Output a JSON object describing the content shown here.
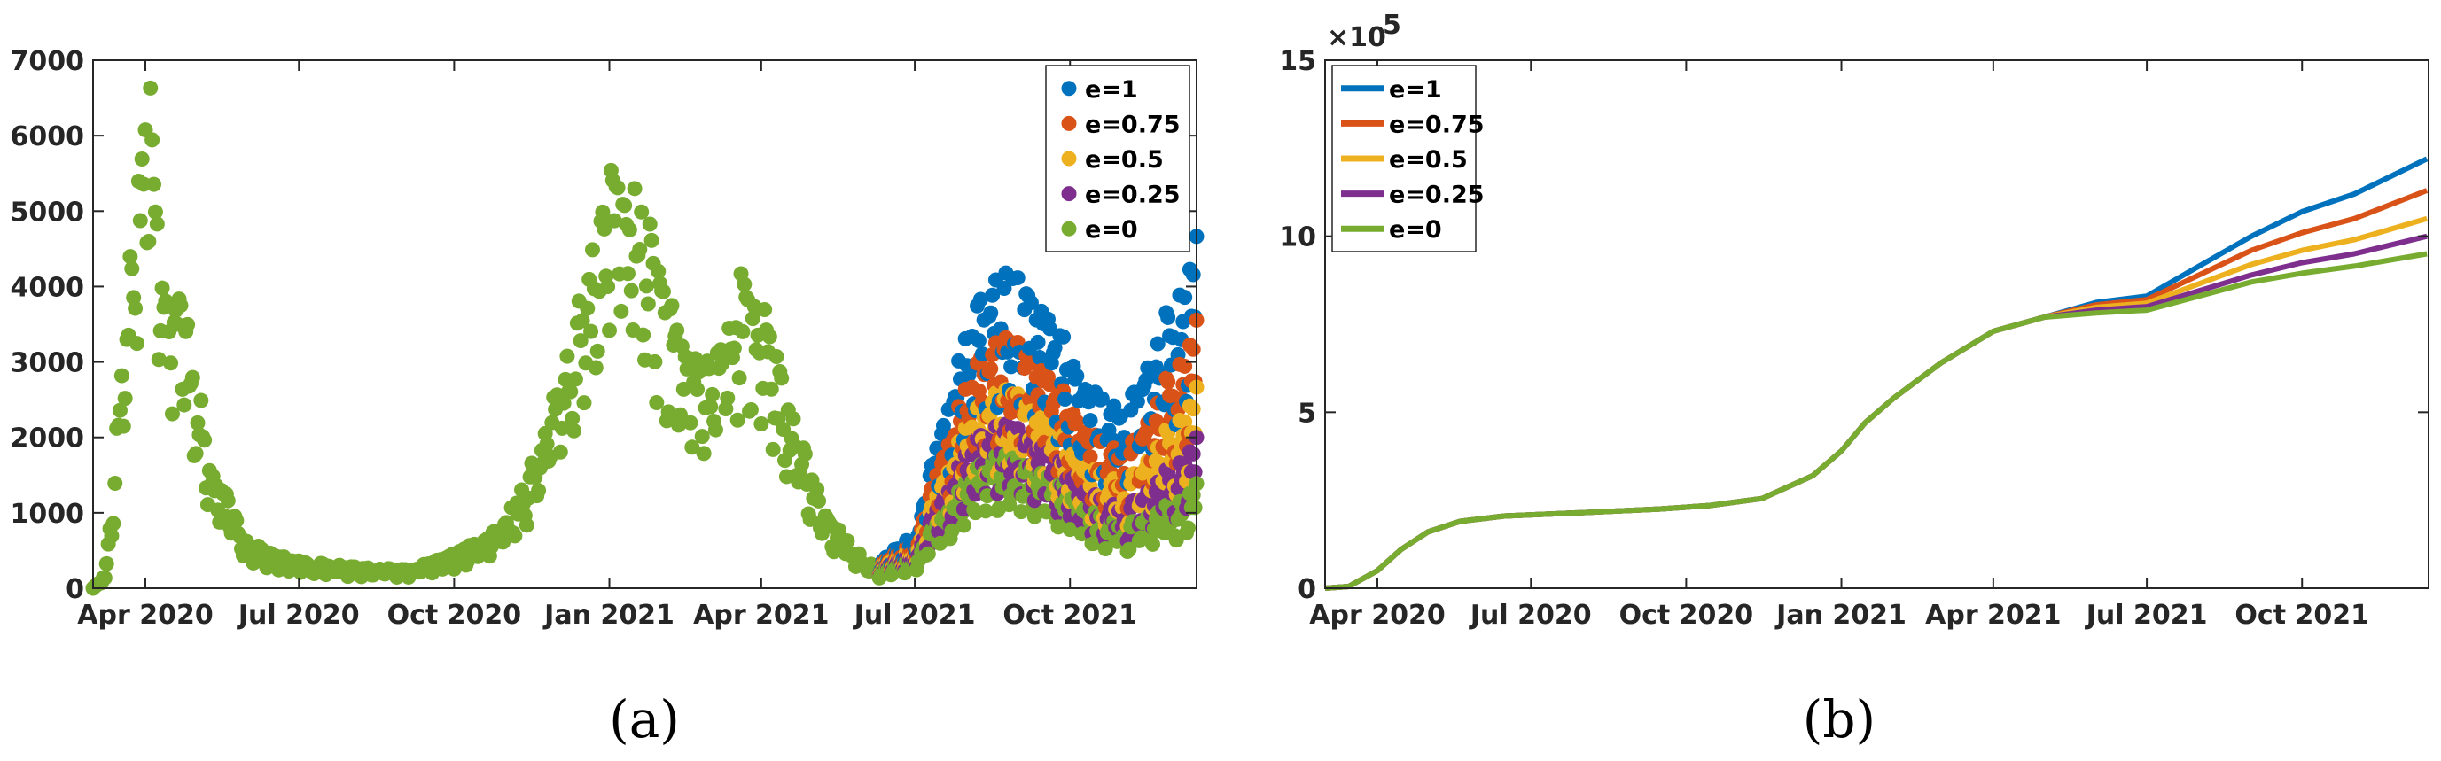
{
  "colors": {
    "e=1": "#0072BD",
    "e=0.75": "#D95319",
    "e=0.5": "#EDB120",
    "e=0.25": "#7E2F8E",
    "e=0": "#77AC30"
  },
  "chart_data": [
    {
      "id": "a",
      "caption": "(a)",
      "type": "scatter",
      "x_axis": {
        "type": "date",
        "range": [
          "2020-03-01",
          "2021-12-15"
        ],
        "ticks": [
          "2020-04-01",
          "2020-07-01",
          "2020-10-01",
          "2021-01-01",
          "2021-04-01",
          "2021-07-01",
          "2021-10-01"
        ],
        "tick_labels": [
          "Apr 2020",
          "Jul 2020",
          "Oct 2020",
          "Jan 2021",
          "Apr 2021",
          "Jul 2021",
          "Oct 2021"
        ]
      },
      "y_axis": {
        "range": [
          0,
          7000
        ],
        "ticks": [
          0,
          1000,
          2000,
          3000,
          4000,
          5000,
          6000,
          7000
        ],
        "tick_labels": [
          "0",
          "1000",
          "2000",
          "3000",
          "4000",
          "5000",
          "6000",
          "7000"
        ]
      },
      "legend": {
        "position": "top-right",
        "entries": [
          "e=1",
          "e=0.75",
          "e=0.5",
          "e=0.25",
          "e=0"
        ]
      },
      "base_series": {
        "name": "e=0",
        "points": [
          [
            "2020-03-01",
            0
          ],
          [
            "2020-03-08",
            150
          ],
          [
            "2020-03-12",
            1000
          ],
          [
            "2020-03-17",
            2500
          ],
          [
            "2020-03-22",
            3800
          ],
          [
            "2020-03-27",
            5000
          ],
          [
            "2020-04-01",
            5800
          ],
          [
            "2020-04-05",
            6300
          ],
          [
            "2020-04-10",
            4500
          ],
          [
            "2020-04-15",
            3800
          ],
          [
            "2020-04-20",
            3600
          ],
          [
            "2020-04-25",
            3300
          ],
          [
            "2020-05-01",
            2600
          ],
          [
            "2020-05-08",
            1600
          ],
          [
            "2020-05-15",
            1200
          ],
          [
            "2020-05-22",
            1000
          ],
          [
            "2020-06-01",
            550
          ],
          [
            "2020-06-15",
            400
          ],
          [
            "2020-07-01",
            320
          ],
          [
            "2020-08-01",
            250
          ],
          [
            "2020-09-01",
            230
          ],
          [
            "2020-09-15",
            280
          ],
          [
            "2020-10-01",
            400
          ],
          [
            "2020-10-15",
            550
          ],
          [
            "2020-11-01",
            800
          ],
          [
            "2020-11-10",
            1200
          ],
          [
            "2020-11-20",
            1700
          ],
          [
            "2020-12-01",
            2400
          ],
          [
            "2020-12-10",
            3000
          ],
          [
            "2020-12-20",
            3800
          ],
          [
            "2020-12-28",
            4700
          ],
          [
            "2021-01-04",
            5200
          ],
          [
            "2021-01-12",
            4900
          ],
          [
            "2021-01-20",
            4600
          ],
          [
            "2021-02-01",
            3800
          ],
          [
            "2021-02-10",
            3000
          ],
          [
            "2021-02-20",
            2900
          ],
          [
            "2021-03-01",
            2600
          ],
          [
            "2021-03-10",
            3200
          ],
          [
            "2021-03-20",
            3700
          ],
          [
            "2021-04-01",
            3400
          ],
          [
            "2021-04-10",
            2700
          ],
          [
            "2021-04-20",
            2000
          ],
          [
            "2021-05-01",
            1300
          ],
          [
            "2021-05-10",
            900
          ],
          [
            "2021-05-20",
            600
          ],
          [
            "2021-06-01",
            350
          ],
          [
            "2021-06-10",
            220
          ],
          [
            "2021-06-20",
            200
          ],
          [
            "2021-07-01",
            350
          ],
          [
            "2021-07-10",
            650
          ],
          [
            "2021-07-20",
            1000
          ],
          [
            "2021-08-01",
            1350
          ],
          [
            "2021-08-15",
            1600
          ],
          [
            "2021-09-01",
            1500
          ],
          [
            "2021-09-15",
            1350
          ],
          [
            "2021-10-01",
            1150
          ],
          [
            "2021-10-15",
            900
          ],
          [
            "2021-11-01",
            750
          ],
          [
            "2021-11-15",
            850
          ],
          [
            "2021-12-01",
            1000
          ],
          [
            "2021-12-14",
            1250
          ]
        ]
      },
      "series": [
        {
          "name": "e=1",
          "points": [
            [
              "2021-06-10",
              300
            ],
            [
              "2021-07-01",
              650
            ],
            [
              "2021-07-10",
              1350
            ],
            [
              "2021-07-20",
              2300
            ],
            [
              "2021-08-01",
              3200
            ],
            [
              "2021-08-15",
              3700
            ],
            [
              "2021-09-01",
              3600
            ],
            [
              "2021-09-15",
              3250
            ],
            [
              "2021-10-01",
              2800
            ],
            [
              "2021-10-15",
              2300
            ],
            [
              "2021-11-01",
              2100
            ],
            [
              "2021-11-15",
              2600
            ],
            [
              "2021-12-01",
              3400
            ],
            [
              "2021-12-14",
              4200
            ]
          ]
        },
        {
          "name": "e=0.75",
          "points": [
            [
              "2021-06-10",
              280
            ],
            [
              "2021-07-01",
              550
            ],
            [
              "2021-07-10",
              1100
            ],
            [
              "2021-07-20",
              1850
            ],
            [
              "2021-08-01",
              2550
            ],
            [
              "2021-08-15",
              2950
            ],
            [
              "2021-09-01",
              2850
            ],
            [
              "2021-09-15",
              2550
            ],
            [
              "2021-10-01",
              2200
            ],
            [
              "2021-10-15",
              1800
            ],
            [
              "2021-11-01",
              1600
            ],
            [
              "2021-11-15",
              1950
            ],
            [
              "2021-12-01",
              2600
            ],
            [
              "2021-12-14",
              3200
            ]
          ]
        },
        {
          "name": "e=0.5",
          "points": [
            [
              "2021-06-10",
              260
            ],
            [
              "2021-07-01",
              480
            ],
            [
              "2021-07-10",
              900
            ],
            [
              "2021-07-20",
              1500
            ],
            [
              "2021-08-01",
              2050
            ],
            [
              "2021-08-15",
              2350
            ],
            [
              "2021-09-01",
              2250
            ],
            [
              "2021-09-15",
              2000
            ],
            [
              "2021-10-01",
              1700
            ],
            [
              "2021-10-15",
              1400
            ],
            [
              "2021-11-01",
              1250
            ],
            [
              "2021-11-15",
              1500
            ],
            [
              "2021-12-01",
              1950
            ],
            [
              "2021-12-14",
              2400
            ]
          ]
        },
        {
          "name": "e=0.25",
          "points": [
            [
              "2021-06-10",
              240
            ],
            [
              "2021-07-01",
              420
            ],
            [
              "2021-07-10",
              780
            ],
            [
              "2021-07-20",
              1250
            ],
            [
              "2021-08-01",
              1700
            ],
            [
              "2021-08-15",
              1950
            ],
            [
              "2021-09-01",
              1850
            ],
            [
              "2021-09-15",
              1650
            ],
            [
              "2021-10-01",
              1400
            ],
            [
              "2021-10-15",
              1100
            ],
            [
              "2021-11-01",
              950
            ],
            [
              "2021-11-15",
              1150
            ],
            [
              "2021-12-01",
              1450
            ],
            [
              "2021-12-14",
              1800
            ]
          ]
        },
        {
          "name": "e=0",
          "points": [
            [
              "2021-06-10",
              220
            ],
            [
              "2021-07-01",
              350
            ],
            [
              "2021-07-10",
              650
            ],
            [
              "2021-07-20",
              1000
            ],
            [
              "2021-08-01",
              1350
            ],
            [
              "2021-08-15",
              1600
            ],
            [
              "2021-09-01",
              1500
            ],
            [
              "2021-09-15",
              1350
            ],
            [
              "2021-10-01",
              1150
            ],
            [
              "2021-10-15",
              900
            ],
            [
              "2021-11-01",
              750
            ],
            [
              "2021-11-15",
              850
            ],
            [
              "2021-12-01",
              1000
            ],
            [
              "2021-12-14",
              1250
            ]
          ]
        }
      ]
    },
    {
      "id": "b",
      "caption": "(b)",
      "type": "line",
      "x_axis": {
        "type": "date",
        "range": [
          "2020-03-01",
          "2021-12-15"
        ],
        "ticks": [
          "2020-04-01",
          "2020-07-01",
          "2020-10-01",
          "2021-01-01",
          "2021-04-01",
          "2021-07-01",
          "2021-10-01"
        ],
        "tick_labels": [
          "Apr 2020",
          "Jul 2020",
          "Oct 2020",
          "Jan 2021",
          "Apr 2021",
          "Jul 2021",
          "Oct 2021"
        ]
      },
      "y_axis": {
        "range": [
          0,
          1500000
        ],
        "ticks": [
          0,
          500000,
          1000000,
          1500000
        ],
        "tick_labels": [
          "0",
          "5",
          "10",
          "15"
        ],
        "exponent_label": "×10",
        "exponent_power": "5"
      },
      "legend": {
        "position": "top-left",
        "entries": [
          "e=1",
          "e=0.75",
          "e=0.5",
          "e=0.25",
          "e=0"
        ]
      },
      "series": [
        {
          "name": "e=0",
          "points": [
            [
              "2020-03-01",
              0
            ],
            [
              "2020-03-15",
              5000
            ],
            [
              "2020-04-01",
              50000
            ],
            [
              "2020-04-15",
              110000
            ],
            [
              "2020-05-01",
              160000
            ],
            [
              "2020-05-20",
              190000
            ],
            [
              "2020-06-15",
              205000
            ],
            [
              "2020-08-01",
              215000
            ],
            [
              "2020-09-15",
              225000
            ],
            [
              "2020-10-15",
              235000
            ],
            [
              "2020-11-15",
              255000
            ],
            [
              "2020-12-15",
              320000
            ],
            [
              "2021-01-01",
              390000
            ],
            [
              "2021-01-15",
              470000
            ],
            [
              "2021-02-01",
              540000
            ],
            [
              "2021-03-01",
              640000
            ],
            [
              "2021-04-01",
              730000
            ],
            [
              "2021-05-01",
              770000
            ],
            [
              "2021-06-01",
              782000
            ],
            [
              "2021-07-01",
              790000
            ],
            [
              "2021-08-01",
              830000
            ],
            [
              "2021-09-01",
              870000
            ],
            [
              "2021-10-01",
              895000
            ],
            [
              "2021-11-01",
              915000
            ],
            [
              "2021-12-14",
              950000
            ]
          ]
        },
        {
          "name": "e=0.25",
          "points": [
            [
              "2021-06-01",
              790000
            ],
            [
              "2021-07-01",
              800000
            ],
            [
              "2021-08-01",
              845000
            ],
            [
              "2021-09-01",
              890000
            ],
            [
              "2021-10-01",
              925000
            ],
            [
              "2021-11-01",
              950000
            ],
            [
              "2021-12-14",
              1000000
            ]
          ]
        },
        {
          "name": "e=0.5",
          "points": [
            [
              "2021-06-01",
              798000
            ],
            [
              "2021-07-01",
              810000
            ],
            [
              "2021-08-01",
              865000
            ],
            [
              "2021-09-01",
              920000
            ],
            [
              "2021-10-01",
              960000
            ],
            [
              "2021-11-01",
              990000
            ],
            [
              "2021-12-14",
              1050000
            ]
          ]
        },
        {
          "name": "e=0.75",
          "points": [
            [
              "2021-06-01",
              805000
            ],
            [
              "2021-07-01",
              820000
            ],
            [
              "2021-08-01",
              890000
            ],
            [
              "2021-09-01",
              960000
            ],
            [
              "2021-10-01",
              1010000
            ],
            [
              "2021-11-01",
              1050000
            ],
            [
              "2021-12-14",
              1130000
            ]
          ]
        },
        {
          "name": "e=1",
          "points": [
            [
              "2021-06-01",
              812000
            ],
            [
              "2021-07-01",
              830000
            ],
            [
              "2021-08-01",
              915000
            ],
            [
              "2021-09-01",
              1000000
            ],
            [
              "2021-10-01",
              1070000
            ],
            [
              "2021-11-01",
              1120000
            ],
            [
              "2021-12-14",
              1220000
            ]
          ]
        }
      ]
    }
  ]
}
